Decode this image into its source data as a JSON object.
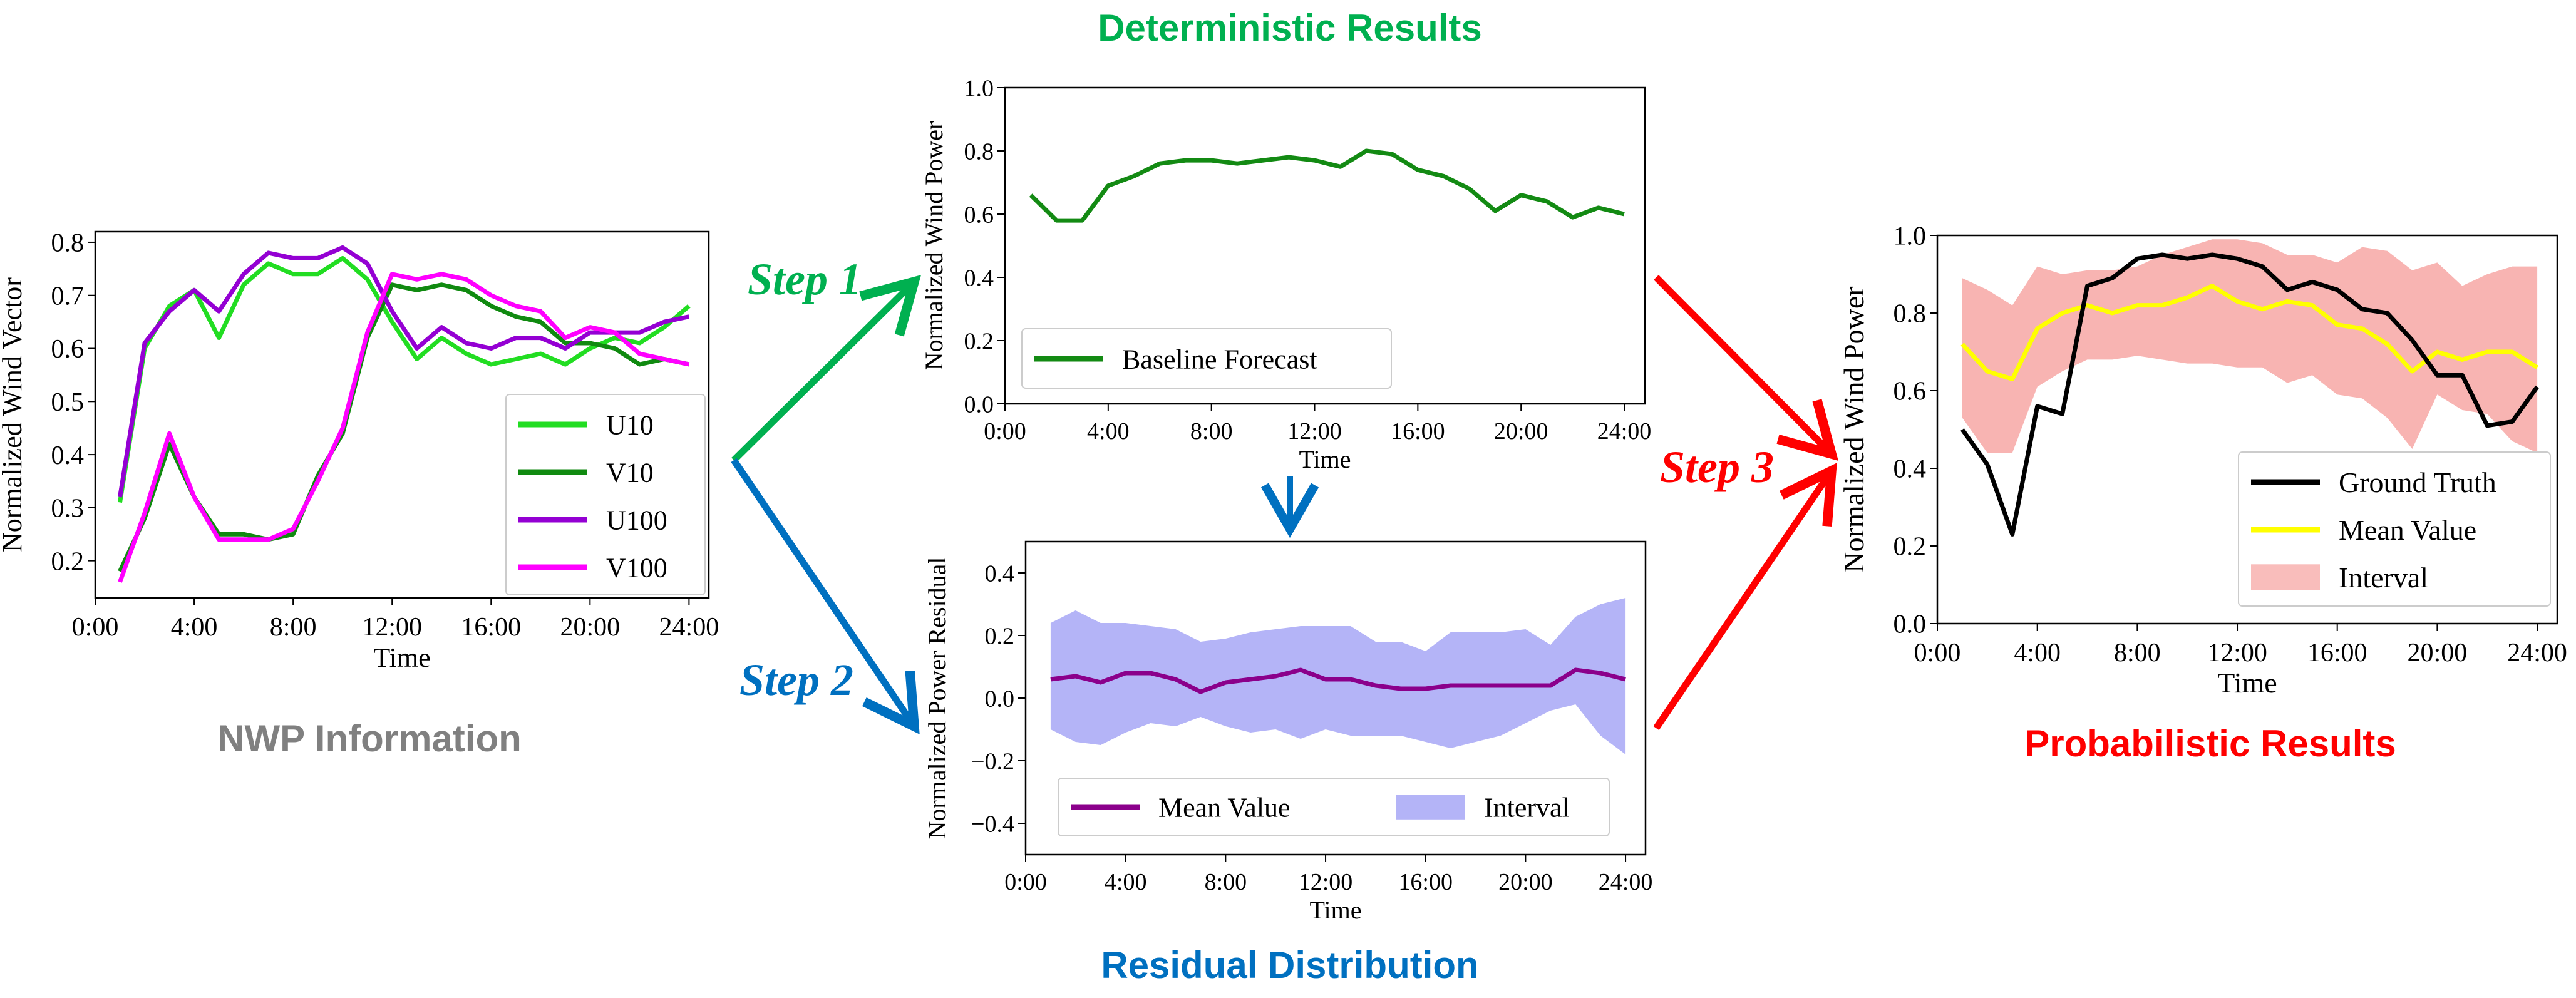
{
  "section_titles": {
    "deterministic": "Deterministic Results",
    "residual": "Residual Distribution",
    "nwp": "NWP Information",
    "probabilistic": "Probabilistic Results"
  },
  "steps": {
    "step1": "Step 1",
    "step2": "Step 2",
    "step3": "Step 3"
  },
  "colors": {
    "deterministic_title": "#00b050",
    "residual_title": "#0070c0",
    "nwp_title": "#808080",
    "probabilistic_title": "#ff0000",
    "step1_arrow": "#00b050",
    "step2_arrow": "#0070c0",
    "step3_arrow": "#ff0000",
    "down_arrow": "#0070c0"
  },
  "chart_data": [
    {
      "id": "nwp",
      "type": "line",
      "title": "",
      "xlabel": "Time",
      "ylabel": "Normalized Wind Vector",
      "xlim": [
        0,
        24.8
      ],
      "ylim": [
        0.13,
        0.82
      ],
      "x_ticks": [
        0,
        4,
        8,
        12,
        16,
        20,
        24
      ],
      "x_tick_labels": [
        "0:00",
        "4:00",
        "8:00",
        "12:00",
        "16:00",
        "20:00",
        "24:00"
      ],
      "y_ticks": [
        0.2,
        0.3,
        0.4,
        0.5,
        0.6,
        0.7,
        0.8
      ],
      "y_tick_labels": [
        "0.2",
        "0.3",
        "0.4",
        "0.5",
        "0.6",
        "0.7",
        "0.8"
      ],
      "legend_position": "lower-right",
      "x": [
        1,
        2,
        3,
        4,
        5,
        6,
        7,
        8,
        9,
        10,
        11,
        12,
        13,
        14,
        15,
        16,
        17,
        18,
        19,
        20,
        21,
        22,
        23,
        24
      ],
      "series": [
        {
          "name": "U10",
          "color": "#22dd22",
          "values": [
            0.31,
            0.6,
            0.68,
            0.71,
            0.62,
            0.72,
            0.76,
            0.74,
            0.74,
            0.77,
            0.73,
            0.65,
            0.58,
            0.62,
            0.59,
            0.57,
            0.58,
            0.59,
            0.57,
            0.6,
            0.62,
            0.61,
            0.64,
            0.68
          ]
        },
        {
          "name": "V10",
          "color": "#108a10",
          "values": [
            0.18,
            0.28,
            0.42,
            0.32,
            0.25,
            0.25,
            0.24,
            0.25,
            0.36,
            0.44,
            0.62,
            0.72,
            0.71,
            0.72,
            0.71,
            0.68,
            0.66,
            0.65,
            0.61,
            0.61,
            0.6,
            0.57,
            0.58,
            0.57
          ]
        },
        {
          "name": "U100",
          "color": "#9400d3",
          "values": [
            0.32,
            0.61,
            0.67,
            0.71,
            0.67,
            0.74,
            0.78,
            0.77,
            0.77,
            0.79,
            0.76,
            0.67,
            0.6,
            0.64,
            0.61,
            0.6,
            0.62,
            0.62,
            0.6,
            0.63,
            0.63,
            0.63,
            0.65,
            0.66
          ]
        },
        {
          "name": "V100",
          "color": "#ff00ff",
          "values": [
            0.16,
            0.29,
            0.44,
            0.32,
            0.24,
            0.24,
            0.24,
            0.26,
            0.35,
            0.45,
            0.63,
            0.74,
            0.73,
            0.74,
            0.73,
            0.7,
            0.68,
            0.67,
            0.62,
            0.64,
            0.63,
            0.59,
            0.58,
            0.57
          ]
        }
      ]
    },
    {
      "id": "deterministic",
      "type": "line",
      "title": "",
      "xlabel": "Time",
      "ylabel": "Normalized Wind Power",
      "xlim": [
        0,
        24.8
      ],
      "ylim": [
        0,
        1.0
      ],
      "x_ticks": [
        0,
        4,
        8,
        12,
        16,
        20,
        24
      ],
      "x_tick_labels": [
        "0:00",
        "4:00",
        "8:00",
        "12:00",
        "16:00",
        "20:00",
        "24:00"
      ],
      "y_ticks": [
        0.0,
        0.2,
        0.4,
        0.6,
        0.8,
        1.0
      ],
      "y_tick_labels": [
        "0.0",
        "0.2",
        "0.4",
        "0.6",
        "0.8",
        "1.0"
      ],
      "legend_position": "lower-left",
      "x": [
        1,
        2,
        3,
        4,
        5,
        6,
        7,
        8,
        9,
        10,
        11,
        12,
        13,
        14,
        15,
        16,
        17,
        18,
        19,
        20,
        21,
        22,
        23,
        24
      ],
      "series": [
        {
          "name": "Baseline Forecast",
          "color": "#138a13",
          "values": [
            0.66,
            0.58,
            0.58,
            0.69,
            0.72,
            0.76,
            0.77,
            0.77,
            0.76,
            0.77,
            0.78,
            0.77,
            0.75,
            0.8,
            0.79,
            0.74,
            0.72,
            0.68,
            0.61,
            0.66,
            0.64,
            0.59,
            0.62,
            0.6
          ]
        }
      ]
    },
    {
      "id": "residual",
      "type": "area",
      "title": "",
      "xlabel": "Time",
      "ylabel": "Normalized Power Residual",
      "xlim": [
        0,
        24.8
      ],
      "ylim": [
        -0.5,
        0.5
      ],
      "x_ticks": [
        0,
        4,
        8,
        12,
        16,
        20,
        24
      ],
      "x_tick_labels": [
        "0:00",
        "4:00",
        "8:00",
        "12:00",
        "16:00",
        "20:00",
        "24:00"
      ],
      "y_ticks": [
        -0.4,
        -0.2,
        0.0,
        0.2,
        0.4
      ],
      "y_tick_labels": [
        "−0.4",
        "−0.2",
        "0.0",
        "0.2",
        "0.4"
      ],
      "legend_position": "lower-center",
      "x": [
        1,
        2,
        3,
        4,
        5,
        6,
        7,
        8,
        9,
        10,
        11,
        12,
        13,
        14,
        15,
        16,
        17,
        18,
        19,
        20,
        21,
        22,
        23,
        24
      ],
      "mean": {
        "name": "Mean Value",
        "color": "#8b008b",
        "values": [
          0.06,
          0.07,
          0.05,
          0.08,
          0.08,
          0.06,
          0.02,
          0.05,
          0.06,
          0.07,
          0.09,
          0.06,
          0.06,
          0.04,
          0.03,
          0.03,
          0.04,
          0.04,
          0.04,
          0.04,
          0.04,
          0.09,
          0.08,
          0.06
        ]
      },
      "interval": {
        "name": "Interval",
        "color": "#9b9bf4",
        "lower": [
          -0.1,
          -0.14,
          -0.15,
          -0.11,
          -0.08,
          -0.09,
          -0.06,
          -0.09,
          -0.11,
          -0.1,
          -0.13,
          -0.1,
          -0.12,
          -0.12,
          -0.12,
          -0.14,
          -0.16,
          -0.14,
          -0.12,
          -0.08,
          -0.04,
          -0.02,
          -0.12,
          -0.18
        ],
        "upper": [
          0.24,
          0.28,
          0.24,
          0.24,
          0.23,
          0.22,
          0.18,
          0.19,
          0.21,
          0.22,
          0.23,
          0.23,
          0.23,
          0.18,
          0.18,
          0.15,
          0.21,
          0.21,
          0.21,
          0.22,
          0.17,
          0.26,
          0.3,
          0.32
        ]
      }
    },
    {
      "id": "probabilistic",
      "type": "area",
      "title": "",
      "xlabel": "Time",
      "ylabel": "Normalized Wind Power",
      "xlim": [
        0,
        24.8
      ],
      "ylim": [
        0,
        1.0
      ],
      "x_ticks": [
        0,
        4,
        8,
        12,
        16,
        20,
        24
      ],
      "x_tick_labels": [
        "0:00",
        "4:00",
        "8:00",
        "12:00",
        "16:00",
        "20:00",
        "24:00"
      ],
      "y_ticks": [
        0.0,
        0.2,
        0.4,
        0.6,
        0.8,
        1.0
      ],
      "y_tick_labels": [
        "0.0",
        "0.2",
        "0.4",
        "0.6",
        "0.8",
        "1.0"
      ],
      "legend_position": "lower-right",
      "x": [
        1,
        2,
        3,
        4,
        5,
        6,
        7,
        8,
        9,
        10,
        11,
        12,
        13,
        14,
        15,
        16,
        17,
        18,
        19,
        20,
        21,
        22,
        23,
        24
      ],
      "ground_truth": {
        "name": "Ground Truth",
        "color": "#000000",
        "values": [
          0.5,
          0.41,
          0.23,
          0.56,
          0.54,
          0.87,
          0.89,
          0.94,
          0.95,
          0.94,
          0.95,
          0.94,
          0.92,
          0.86,
          0.88,
          0.86,
          0.81,
          0.8,
          0.73,
          0.64,
          0.64,
          0.51,
          0.52,
          0.61
        ]
      },
      "mean": {
        "name": "Mean Value",
        "color": "#ffff00",
        "values": [
          0.72,
          0.65,
          0.63,
          0.76,
          0.8,
          0.82,
          0.8,
          0.82,
          0.82,
          0.84,
          0.87,
          0.83,
          0.81,
          0.83,
          0.82,
          0.77,
          0.76,
          0.72,
          0.65,
          0.7,
          0.68,
          0.7,
          0.7,
          0.66
        ]
      },
      "interval": {
        "name": "Interval",
        "color": "#f7a7a4",
        "lower": [
          0.53,
          0.44,
          0.44,
          0.61,
          0.65,
          0.68,
          0.68,
          0.69,
          0.68,
          0.67,
          0.67,
          0.66,
          0.66,
          0.62,
          0.64,
          0.59,
          0.58,
          0.53,
          0.45,
          0.59,
          0.55,
          0.54,
          0.47,
          0.44
        ],
        "upper": [
          0.89,
          0.86,
          0.82,
          0.92,
          0.9,
          0.91,
          0.91,
          0.92,
          0.95,
          0.97,
          0.99,
          0.99,
          0.98,
          0.95,
          0.95,
          0.93,
          0.97,
          0.96,
          0.91,
          0.93,
          0.87,
          0.9,
          0.92,
          0.92
        ]
      }
    }
  ]
}
